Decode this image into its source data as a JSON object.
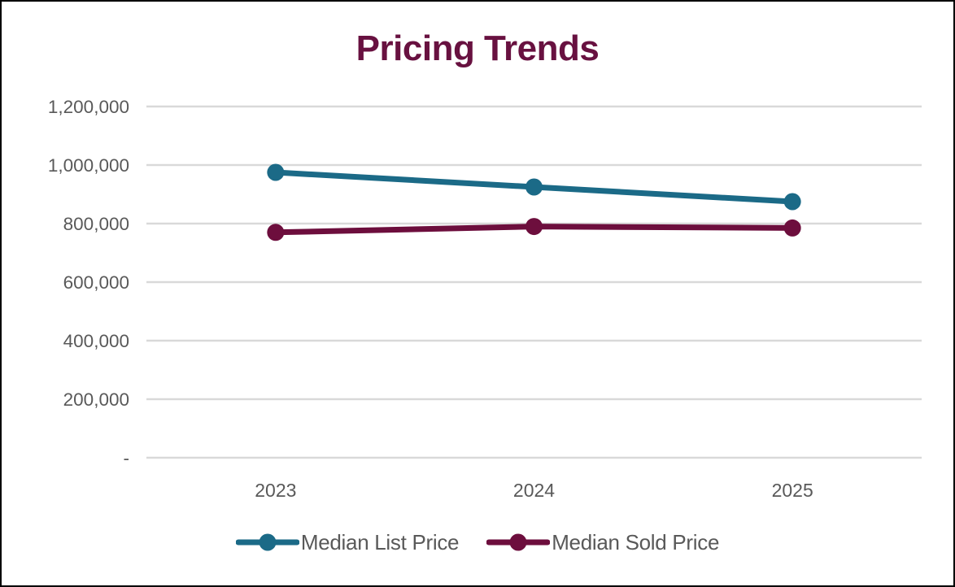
{
  "frame": {
    "background_color": "#ffffff",
    "border_color": "#000000"
  },
  "chart_data": {
    "type": "line",
    "title": "Pricing Trends",
    "title_color": "#681140",
    "categories": [
      "2023",
      "2024",
      "2025"
    ],
    "series": [
      {
        "name": "Median List Price",
        "color": "#1b6a87",
        "values": [
          975000,
          925000,
          875000
        ]
      },
      {
        "name": "Median Sold Price",
        "color": "#6d0e3d",
        "values": [
          770000,
          790000,
          785000
        ]
      }
    ],
    "y_axis": {
      "min": 0,
      "max": 1200000,
      "step": 200000,
      "tick_labels": [
        "-",
        "200,000",
        "400,000",
        "600,000",
        "800,000",
        "1,000,000",
        "1,200,000"
      ]
    },
    "grid": true,
    "gridline_color": "#d9d9d9",
    "axis_label_color": "#595959",
    "legend_position": "bottom",
    "marker": "circle"
  }
}
